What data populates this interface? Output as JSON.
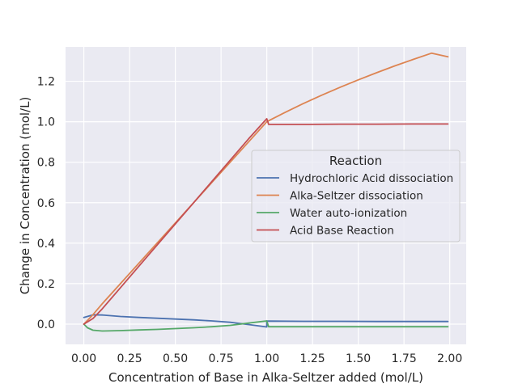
{
  "chart_data": {
    "type": "line",
    "title": "",
    "xlabel": "Concentration of Base in Alka-Seltzer added (mol/L)",
    "ylabel": "Change in Concentration (mol/L)",
    "xlim": [
      -0.1,
      2.09
    ],
    "ylim": [
      -0.1,
      1.37
    ],
    "xticks": [
      0.0,
      0.25,
      0.5,
      0.75,
      1.0,
      1.25,
      1.5,
      1.75,
      2.0
    ],
    "xtick_labels": [
      "0.00",
      "0.25",
      "0.50",
      "0.75",
      "1.00",
      "1.25",
      "1.50",
      "1.75",
      "2.00"
    ],
    "yticks": [
      0.0,
      0.2,
      0.4,
      0.6,
      0.8,
      1.0,
      1.2
    ],
    "ytick_labels": [
      "0.0",
      "0.2",
      "0.4",
      "0.6",
      "0.8",
      "1.0",
      "1.2"
    ],
    "grid": true,
    "legend": {
      "title": "Reaction",
      "placement": "center-right"
    },
    "series": [
      {
        "name": "Hydrochloric Acid dissociation",
        "color": "#4c72b0",
        "x": [
          0.0,
          0.05,
          0.1,
          0.2,
          0.3,
          0.4,
          0.5,
          0.6,
          0.7,
          0.8,
          0.9,
          0.95,
          1.0,
          1.0,
          1.2,
          1.4,
          1.6,
          1.8,
          1.99
        ],
        "y": [
          0.033,
          0.046,
          0.045,
          0.038,
          0.033,
          0.029,
          0.025,
          0.021,
          0.016,
          0.009,
          -0.002,
          -0.008,
          -0.014,
          0.015,
          0.014,
          0.014,
          0.013,
          0.013,
          0.013
        ]
      },
      {
        "name": "Alka-Seltzer dissociation",
        "color": "#dd8452",
        "x": [
          0.0,
          0.05,
          0.1,
          0.2,
          0.3,
          0.4,
          0.5,
          0.6,
          0.7,
          0.8,
          0.9,
          1.0,
          1.1,
          1.2,
          1.3,
          1.4,
          1.5,
          1.6,
          1.7,
          1.8,
          1.9,
          1.99
        ],
        "y": [
          0.0,
          0.047,
          0.1,
          0.2,
          0.3,
          0.4,
          0.5,
          0.6,
          0.7,
          0.8,
          0.9,
          1.0,
          1.046,
          1.09,
          1.131,
          1.17,
          1.207,
          1.242,
          1.276,
          1.308,
          1.339,
          1.321
        ]
      },
      {
        "name": "Water auto-ionization",
        "color": "#55a868",
        "x": [
          0.0,
          0.02,
          0.05,
          0.1,
          0.2,
          0.3,
          0.4,
          0.5,
          0.6,
          0.7,
          0.8,
          0.9,
          1.0,
          1.01,
          1.2,
          1.4,
          1.6,
          1.8,
          1.99
        ],
        "y": [
          0.0,
          -0.018,
          -0.03,
          -0.034,
          -0.032,
          -0.029,
          -0.026,
          -0.022,
          -0.018,
          -0.013,
          -0.006,
          0.005,
          0.016,
          -0.013,
          -0.013,
          -0.013,
          -0.013,
          -0.013,
          -0.013
        ]
      },
      {
        "name": "Acid Base Reaction",
        "color": "#c44e52",
        "x": [
          0.0,
          0.05,
          0.1,
          0.2,
          0.3,
          0.4,
          0.5,
          0.6,
          0.7,
          0.8,
          0.9,
          1.0,
          1.01,
          1.2,
          1.4,
          1.6,
          1.8,
          1.99
        ],
        "y": [
          0.0,
          0.028,
          0.075,
          0.18,
          0.285,
          0.39,
          0.495,
          0.6,
          0.705,
          0.81,
          0.915,
          1.015,
          0.987,
          0.987,
          0.988,
          0.988,
          0.989,
          0.989
        ]
      }
    ]
  }
}
